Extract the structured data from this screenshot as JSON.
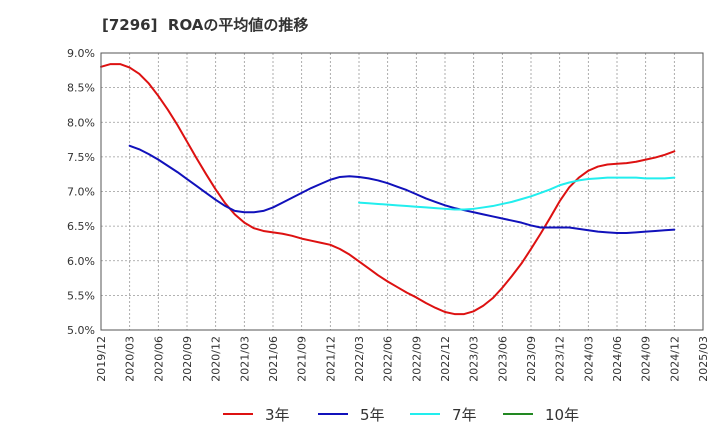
{
  "chart_data": {
    "type": "line",
    "title": "[7296]  ROAの平均値の推移",
    "xlabel": "",
    "ylabel": "",
    "x_ticks": [
      "2019/12",
      "2020/03",
      "2020/06",
      "2020/09",
      "2020/12",
      "2021/03",
      "2021/06",
      "2021/09",
      "2021/12",
      "2022/03",
      "2022/06",
      "2022/09",
      "2022/12",
      "2023/03",
      "2023/06",
      "2023/09",
      "2023/12",
      "2024/03",
      "2024/06",
      "2024/09",
      "2024/12",
      "2025/03"
    ],
    "y_ticks": [
      "5.0%",
      "5.5%",
      "6.0%",
      "6.5%",
      "7.0%",
      "7.5%",
      "8.0%",
      "8.5%",
      "9.0%"
    ],
    "ylim": [
      5.0,
      9.0
    ],
    "grid": true,
    "legend_position": "bottom",
    "series": [
      {
        "name": "3年",
        "color": "#dd1111",
        "points": [
          [
            "2019/12",
            8.8
          ],
          [
            "2020/01",
            8.84
          ],
          [
            "2020/02",
            8.84
          ],
          [
            "2020/03",
            8.79
          ],
          [
            "2020/04",
            8.7
          ],
          [
            "2020/05",
            8.56
          ],
          [
            "2020/06",
            8.38
          ],
          [
            "2020/07",
            8.18
          ],
          [
            "2020/08",
            7.96
          ],
          [
            "2020/09",
            7.72
          ],
          [
            "2020/10",
            7.48
          ],
          [
            "2020/11",
            7.25
          ],
          [
            "2020/12",
            7.03
          ],
          [
            "2021/01",
            6.83
          ],
          [
            "2021/02",
            6.67
          ],
          [
            "2021/03",
            6.55
          ],
          [
            "2021/04",
            6.47
          ],
          [
            "2021/05",
            6.43
          ],
          [
            "2021/06",
            6.41
          ],
          [
            "2021/07",
            6.39
          ],
          [
            "2021/08",
            6.36
          ],
          [
            "2021/09",
            6.32
          ],
          [
            "2021/10",
            6.29
          ],
          [
            "2021/11",
            6.26
          ],
          [
            "2021/12",
            6.23
          ],
          [
            "2022/01",
            6.17
          ],
          [
            "2022/02",
            6.09
          ],
          [
            "2022/03",
            5.99
          ],
          [
            "2022/04",
            5.89
          ],
          [
            "2022/05",
            5.79
          ],
          [
            "2022/06",
            5.7
          ],
          [
            "2022/07",
            5.62
          ],
          [
            "2022/08",
            5.54
          ],
          [
            "2022/09",
            5.47
          ],
          [
            "2022/10",
            5.39
          ],
          [
            "2022/11",
            5.32
          ],
          [
            "2022/12",
            5.26
          ],
          [
            "2023/01",
            5.23
          ],
          [
            "2023/02",
            5.23
          ],
          [
            "2023/03",
            5.27
          ],
          [
            "2023/04",
            5.35
          ],
          [
            "2023/05",
            5.46
          ],
          [
            "2023/06",
            5.61
          ],
          [
            "2023/07",
            5.78
          ],
          [
            "2023/08",
            5.96
          ],
          [
            "2023/09",
            6.17
          ],
          [
            "2023/10",
            6.39
          ],
          [
            "2023/11",
            6.62
          ],
          [
            "2023/12",
            6.86
          ],
          [
            "2024/01",
            7.06
          ],
          [
            "2024/02",
            7.2
          ],
          [
            "2024/03",
            7.3
          ],
          [
            "2024/04",
            7.36
          ],
          [
            "2024/05",
            7.39
          ],
          [
            "2024/06",
            7.4
          ],
          [
            "2024/07",
            7.41
          ],
          [
            "2024/08",
            7.43
          ],
          [
            "2024/09",
            7.46
          ],
          [
            "2024/10",
            7.49
          ],
          [
            "2024/11",
            7.53
          ],
          [
            "2024/12",
            7.58
          ]
        ]
      },
      {
        "name": "5年",
        "color": "#1111bb",
        "points": [
          [
            "2020/03",
            7.66
          ],
          [
            "2020/04",
            7.61
          ],
          [
            "2020/05",
            7.54
          ],
          [
            "2020/06",
            7.46
          ],
          [
            "2020/07",
            7.37
          ],
          [
            "2020/08",
            7.28
          ],
          [
            "2020/09",
            7.18
          ],
          [
            "2020/10",
            7.08
          ],
          [
            "2020/11",
            6.98
          ],
          [
            "2020/12",
            6.88
          ],
          [
            "2021/01",
            6.79
          ],
          [
            "2021/02",
            6.72
          ],
          [
            "2021/03",
            6.7
          ],
          [
            "2021/04",
            6.7
          ],
          [
            "2021/05",
            6.72
          ],
          [
            "2021/06",
            6.77
          ],
          [
            "2021/07",
            6.84
          ],
          [
            "2021/08",
            6.91
          ],
          [
            "2021/09",
            6.98
          ],
          [
            "2021/10",
            7.05
          ],
          [
            "2021/11",
            7.11
          ],
          [
            "2021/12",
            7.17
          ],
          [
            "2022/01",
            7.21
          ],
          [
            "2022/02",
            7.22
          ],
          [
            "2022/03",
            7.21
          ],
          [
            "2022/04",
            7.19
          ],
          [
            "2022/05",
            7.16
          ],
          [
            "2022/06",
            7.12
          ],
          [
            "2022/07",
            7.07
          ],
          [
            "2022/08",
            7.02
          ],
          [
            "2022/09",
            6.96
          ],
          [
            "2022/10",
            6.9
          ],
          [
            "2022/11",
            6.85
          ],
          [
            "2022/12",
            6.8
          ],
          [
            "2023/01",
            6.76
          ],
          [
            "2023/02",
            6.73
          ],
          [
            "2023/03",
            6.7
          ],
          [
            "2023/04",
            6.67
          ],
          [
            "2023/05",
            6.64
          ],
          [
            "2023/06",
            6.61
          ],
          [
            "2023/07",
            6.58
          ],
          [
            "2023/08",
            6.55
          ],
          [
            "2023/09",
            6.51
          ],
          [
            "2023/10",
            6.48
          ],
          [
            "2023/11",
            6.48
          ],
          [
            "2023/12",
            6.48
          ],
          [
            "2024/01",
            6.48
          ],
          [
            "2024/02",
            6.46
          ],
          [
            "2024/03",
            6.44
          ],
          [
            "2024/04",
            6.42
          ],
          [
            "2024/05",
            6.41
          ],
          [
            "2024/06",
            6.4
          ],
          [
            "2024/07",
            6.4
          ],
          [
            "2024/08",
            6.41
          ],
          [
            "2024/09",
            6.42
          ],
          [
            "2024/10",
            6.43
          ],
          [
            "2024/11",
            6.44
          ],
          [
            "2024/12",
            6.45
          ]
        ]
      },
      {
        "name": "7年",
        "color": "#22eeee",
        "points": [
          [
            "2022/03",
            6.84
          ],
          [
            "2022/04",
            6.83
          ],
          [
            "2022/05",
            6.82
          ],
          [
            "2022/06",
            6.81
          ],
          [
            "2022/07",
            6.8
          ],
          [
            "2022/08",
            6.79
          ],
          [
            "2022/09",
            6.78
          ],
          [
            "2022/10",
            6.77
          ],
          [
            "2022/11",
            6.76
          ],
          [
            "2022/12",
            6.75
          ],
          [
            "2023/01",
            6.74
          ],
          [
            "2023/02",
            6.74
          ],
          [
            "2023/03",
            6.75
          ],
          [
            "2023/04",
            6.77
          ],
          [
            "2023/05",
            6.79
          ],
          [
            "2023/06",
            6.82
          ],
          [
            "2023/07",
            6.85
          ],
          [
            "2023/08",
            6.89
          ],
          [
            "2023/09",
            6.93
          ],
          [
            "2023/10",
            6.98
          ],
          [
            "2023/11",
            7.03
          ],
          [
            "2023/12",
            7.09
          ],
          [
            "2024/01",
            7.13
          ],
          [
            "2024/02",
            7.16
          ],
          [
            "2024/03",
            7.18
          ],
          [
            "2024/04",
            7.19
          ],
          [
            "2024/05",
            7.2
          ],
          [
            "2024/06",
            7.2
          ],
          [
            "2024/07",
            7.2
          ],
          [
            "2024/08",
            7.2
          ],
          [
            "2024/09",
            7.19
          ],
          [
            "2024/10",
            7.19
          ],
          [
            "2024/11",
            7.19
          ],
          [
            "2024/12",
            7.2
          ]
        ]
      },
      {
        "name": "10年",
        "color": "#228822",
        "points": []
      }
    ]
  }
}
